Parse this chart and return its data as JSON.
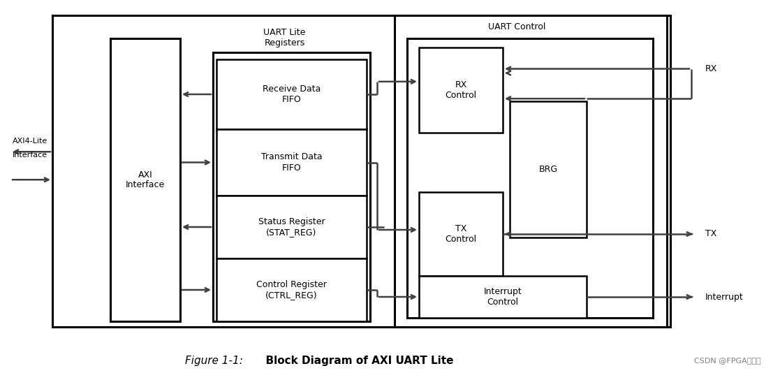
{
  "fig_width": 11.17,
  "fig_height": 5.44,
  "bg_color": "#ffffff",
  "title_italic": "Figure 1-1:",
  "title_bold": "  Block Diagram of AXI UART Lite",
  "watermark": "CSDN @FPGA与信号",
  "lw": 1.8,
  "lw_thick": 2.2,
  "fs": 9,
  "fs_label": 9,
  "fs_caption": 11
}
